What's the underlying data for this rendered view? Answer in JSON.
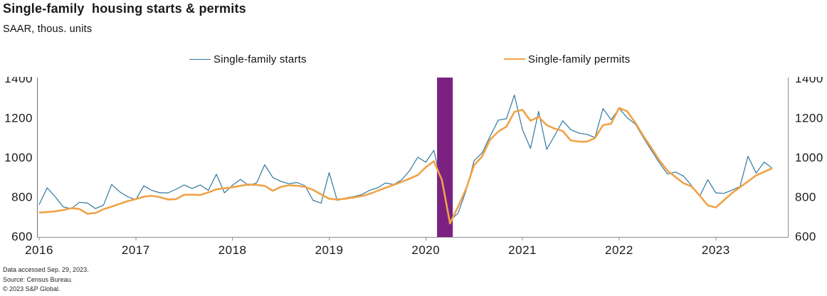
{
  "header": {
    "title": "Single-family  housing starts & permits",
    "subtitle": "SAAR, thous. units"
  },
  "legend": {
    "starts_label": "Single-family starts",
    "permits_label": "Single-family permits"
  },
  "footer": {
    "accessed": "Data accessed Sep. 29, 2023.",
    "source": "Source: Census Bureau.",
    "copyright": "© 2023 S&P Global."
  },
  "chart_data": {
    "type": "line",
    "title": "Single-family  housing starts & permits",
    "subtitle": "SAAR, thous. units",
    "frequency": "monthly",
    "x_start": "2016-01",
    "x_end": "2023-08",
    "x_tick_labels": [
      "2016",
      "2017",
      "2018",
      "2019",
      "2020",
      "2021",
      "2022",
      "2023"
    ],
    "y_ticks": [
      600,
      800,
      1000,
      1200,
      1400
    ],
    "ylim": [
      600,
      1400
    ],
    "grid": false,
    "legend_position": "top",
    "dual_axis_labels": true,
    "recession_band": {
      "from": "2020-02",
      "to": "2020-04",
      "color": "#7A2182"
    },
    "colors": {
      "starts": "#31789F",
      "permits": "#F0A347",
      "axis": "#8F8F8F",
      "text": "#1A1A1A"
    },
    "series": [
      {
        "name": "Single-family starts",
        "color": "#31789F",
        "stroke_width": 1.2,
        "values": [
          760,
          845,
          800,
          748,
          740,
          772,
          768,
          740,
          758,
          862,
          825,
          800,
          785,
          855,
          832,
          820,
          820,
          838,
          860,
          842,
          860,
          832,
          914,
          820,
          858,
          888,
          857,
          870,
          962,
          898,
          878,
          866,
          872,
          856,
          782,
          768,
          922,
          781,
          793,
          800,
          810,
          832,
          845,
          870,
          862,
          885,
          933,
          1000,
          975,
          1035,
          856,
          678,
          717,
          831,
          983,
          1022,
          1108,
          1188,
          1195,
          1315,
          1140,
          1045,
          1232,
          1040,
          1110,
          1185,
          1140,
          1122,
          1116,
          1100,
          1247,
          1190,
          1248,
          1200,
          1168,
          1100,
          1035,
          972,
          915,
          925,
          905,
          856,
          802,
          886,
          820,
          817,
          833,
          851,
          1005,
          920,
          975,
          945
        ]
      },
      {
        "name": "Single-family permits",
        "color": "#F0A347",
        "stroke_width": 2.6,
        "values": [
          720,
          722,
          726,
          733,
          742,
          738,
          714,
          718,
          737,
          750,
          764,
          778,
          788,
          800,
          805,
          798,
          786,
          788,
          810,
          810,
          809,
          822,
          838,
          843,
          848,
          855,
          862,
          860,
          855,
          830,
          850,
          858,
          856,
          850,
          835,
          812,
          790,
          786,
          790,
          796,
          803,
          814,
          830,
          845,
          860,
          875,
          892,
          910,
          950,
          980,
          885,
          665,
          750,
          840,
          960,
          1005,
          1090,
          1130,
          1155,
          1230,
          1240,
          1185,
          1205,
          1163,
          1145,
          1133,
          1085,
          1079,
          1079,
          1097,
          1163,
          1170,
          1250,
          1232,
          1175,
          1108,
          1048,
          985,
          932,
          900,
          868,
          852,
          806,
          756,
          746,
          782,
          818,
          848,
          878,
          908,
          926,
          944
        ]
      }
    ]
  }
}
